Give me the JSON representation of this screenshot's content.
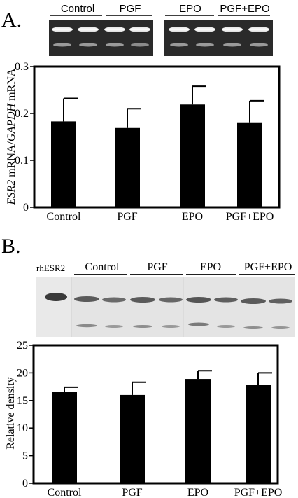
{
  "panels": [
    {
      "letter": "A.",
      "gel_labels": [
        "Control",
        "PGF",
        "EPO",
        "PGF+EPO"
      ],
      "marker_label": "",
      "ylabel_italic_1": "ESR2",
      "ylabel_mid": " mRNA/",
      "ylabel_italic_2": "GAPDH",
      "ylabel_end": " mRNA"
    },
    {
      "letter": "B.",
      "gel_labels": [
        "Control",
        "PGF",
        "EPO",
        "PGF+EPO"
      ],
      "marker_label": "rhESR2",
      "ylabel_italic_1": "",
      "ylabel_mid": "Relative density",
      "ylabel_italic_2": "",
      "ylabel_end": ""
    }
  ],
  "chart_data": [
    {
      "type": "bar",
      "categories": [
        "Control",
        "PGF",
        "EPO",
        "PGF+EPO"
      ],
      "values": [
        0.183,
        0.169,
        0.219,
        0.181
      ],
      "errors": [
        0.049,
        0.041,
        0.039,
        0.046
      ],
      "ylim": [
        0,
        0.3
      ],
      "yticks": [
        "0",
        "0.1",
        "0.2",
        "0.3"
      ],
      "ytick_values": [
        0,
        0.1,
        0.2,
        0.3
      ],
      "bar_color": "#000000"
    },
    {
      "type": "bar",
      "categories": [
        "Control",
        "PGF",
        "EPO",
        "PGF+EPO"
      ],
      "values": [
        16.5,
        16.0,
        18.9,
        17.8
      ],
      "errors": [
        0.9,
        2.3,
        1.5,
        2.2
      ],
      "ylim": [
        0,
        25
      ],
      "yticks": [
        "0",
        "5",
        "10",
        "15",
        "20",
        "25"
      ],
      "ytick_values": [
        0,
        5,
        10,
        15,
        20,
        25
      ],
      "bar_color": "#000000"
    }
  ]
}
